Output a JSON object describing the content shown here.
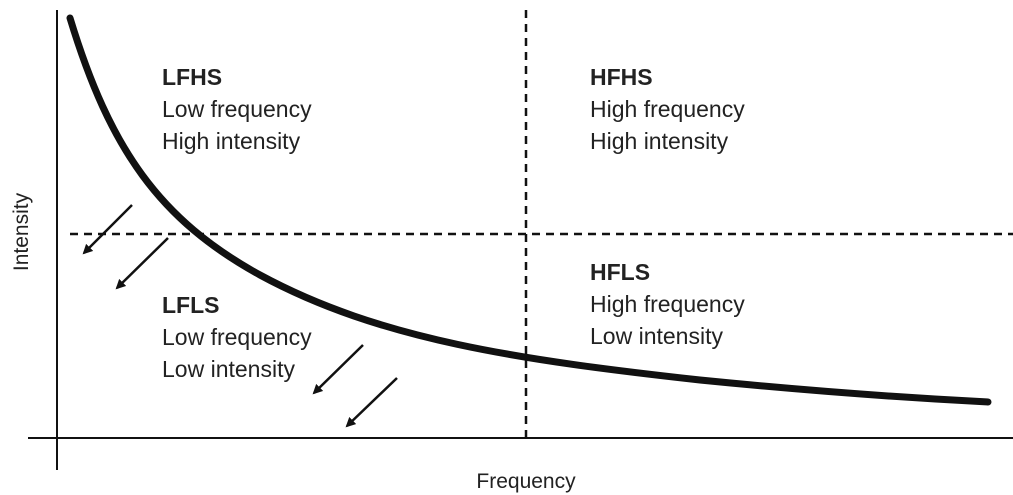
{
  "axes": {
    "x_label": "Frequency",
    "y_label": "Intensity"
  },
  "quadrants": [
    {
      "title": "LFHS",
      "lines": [
        "Low frequency",
        "High intensity"
      ]
    },
    {
      "title": "HFHS",
      "lines": [
        "High frequency",
        "High intensity"
      ]
    },
    {
      "title": "LFLS",
      "lines": [
        "Low frequency",
        "Low intensity"
      ]
    },
    {
      "title": "HFLS",
      "lines": [
        "High frequency",
        "Low intensity"
      ]
    }
  ]
}
